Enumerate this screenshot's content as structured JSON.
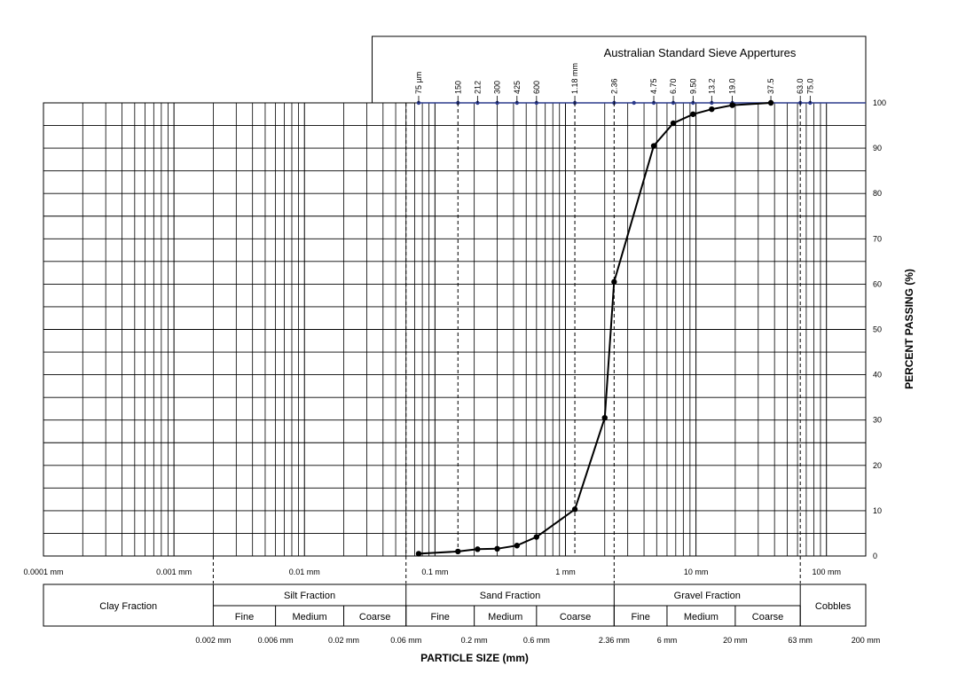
{
  "chart_data": {
    "type": "line",
    "x_scale": "log",
    "xlim": [
      0.0001,
      200
    ],
    "ylim": [
      0,
      100
    ],
    "ylabel": "PERCENT PASSING (%)",
    "xlabel": "PARTICLE  SIZE  (mm)",
    "y_ticks": [
      "0",
      "10",
      "20",
      "30",
      "40",
      "50",
      "60",
      "70",
      "80",
      "90",
      "100"
    ],
    "x_ticks": [
      {
        "value": 0.0001,
        "label": "0.0001 mm"
      },
      {
        "value": 0.001,
        "label": "0.001 mm"
      },
      {
        "value": 0.01,
        "label": "0.01 mm"
      },
      {
        "value": 0.1,
        "label": "0.1 mm"
      },
      {
        "value": 1,
        "label": "1 mm"
      },
      {
        "value": 10,
        "label": "10 mm"
      },
      {
        "value": 100,
        "label": "100 mm"
      }
    ],
    "sieve_title": "Australian Standard Sieve Appertures",
    "sieves": [
      {
        "value": 0.075,
        "label": "75 µm"
      },
      {
        "value": 0.15,
        "label": "150"
      },
      {
        "value": 0.212,
        "label": "212"
      },
      {
        "value": 0.3,
        "label": "300"
      },
      {
        "value": 0.425,
        "label": "425"
      },
      {
        "value": 0.6,
        "label": "600"
      },
      {
        "value": 1.18,
        "label": "1.18 mm"
      },
      {
        "value": 2.36,
        "label": "2.36"
      },
      {
        "value": 3.35,
        "label": ""
      },
      {
        "value": 4.75,
        "label": "4.75"
      },
      {
        "value": 6.7,
        "label": "6.70"
      },
      {
        "value": 9.5,
        "label": "9.50"
      },
      {
        "value": 13.2,
        "label": "13.2"
      },
      {
        "value": 19.0,
        "label": "19.0"
      },
      {
        "value": 37.5,
        "label": "37.5"
      },
      {
        "value": 63.0,
        "label": "63.0"
      },
      {
        "value": 75.0,
        "label": "75.0"
      }
    ],
    "series": [
      {
        "x": [
          0.075,
          0.15,
          0.212,
          0.3,
          0.425,
          0.6,
          1.18,
          2.0,
          2.36,
          4.75,
          6.7,
          9.5,
          13.2,
          19.0,
          37.5
        ],
        "y": [
          0.5,
          1,
          1.5,
          1.6,
          2.3,
          4.2,
          10.3,
          30.5,
          60.5,
          90.5,
          95.5,
          97.5,
          98.6,
          99.5,
          100
        ]
      }
    ],
    "fraction_boundaries": [
      {
        "value": 0.002,
        "label": "0.002 mm"
      },
      {
        "value": 0.006,
        "label": "0.006 mm"
      },
      {
        "value": 0.02,
        "label": "0.02 mm"
      },
      {
        "value": 0.06,
        "label": "0.06 mm"
      },
      {
        "value": 0.2,
        "label": "0.2 mm"
      },
      {
        "value": 0.6,
        "label": "0.6 mm"
      },
      {
        "value": 2.36,
        "label": "2.36 mm"
      },
      {
        "value": 6,
        "label": "6 mm"
      },
      {
        "value": 20,
        "label": "20 mm"
      },
      {
        "value": 63,
        "label": "63 mm"
      },
      {
        "value": 200,
        "label": "200 mm"
      }
    ],
    "fractions": [
      {
        "name": "Clay Fraction",
        "from": 0.0001,
        "to": 0.002,
        "subs": []
      },
      {
        "name": "Silt Fraction",
        "from": 0.002,
        "to": 0.06,
        "subs": [
          {
            "name": "Fine",
            "from": 0.002,
            "to": 0.006
          },
          {
            "name": "Medium",
            "from": 0.006,
            "to": 0.02
          },
          {
            "name": "Coarse",
            "from": 0.02,
            "to": 0.06
          }
        ]
      },
      {
        "name": "Sand Fraction",
        "from": 0.06,
        "to": 2.36,
        "subs": [
          {
            "name": "Fine",
            "from": 0.06,
            "to": 0.2
          },
          {
            "name": "Medium",
            "from": 0.2,
            "to": 0.6
          },
          {
            "name": "Coarse",
            "from": 0.6,
            "to": 2.36
          }
        ]
      },
      {
        "name": "Gravel Fraction",
        "from": 2.36,
        "to": 63,
        "subs": [
          {
            "name": "Fine",
            "from": 2.36,
            "to": 6
          },
          {
            "name": "Medium",
            "from": 6,
            "to": 20
          },
          {
            "name": "Coarse",
            "from": 20,
            "to": 63
          }
        ]
      },
      {
        "name": "Cobbles",
        "from": 63,
        "to": 200,
        "subs": []
      }
    ],
    "dashed_lines": [
      0.002,
      0.06,
      0.15,
      1.18,
      2.36,
      63
    ],
    "grid": true
  }
}
